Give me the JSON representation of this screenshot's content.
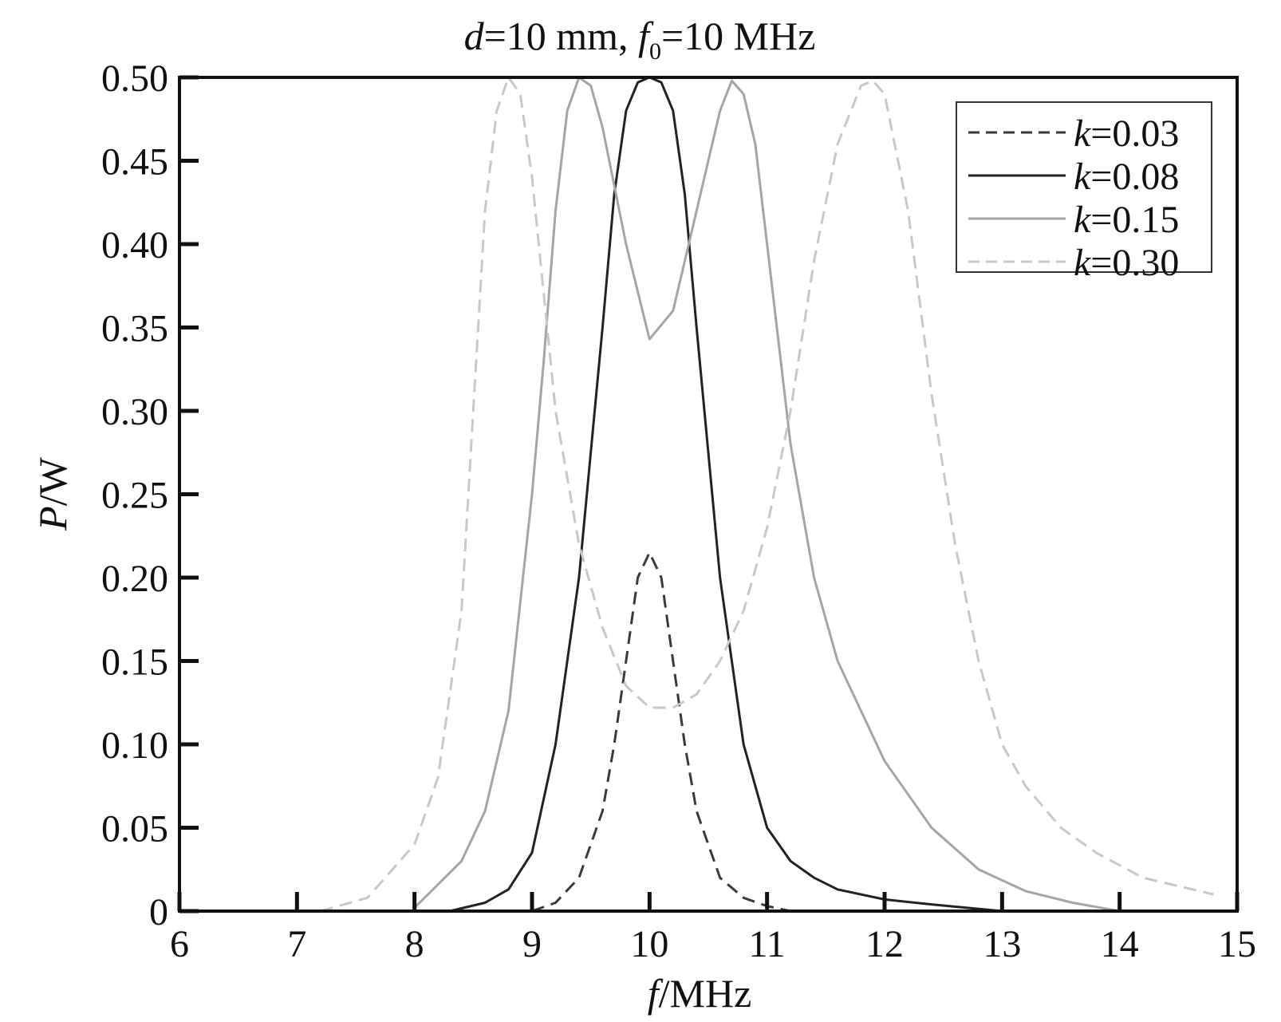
{
  "chart_data": {
    "type": "line",
    "title": {
      "var1": "d",
      "part1": "=10 mm, ",
      "var2": "f",
      "sub2": "0",
      "part2": "=10 MHz"
    },
    "xlabel": {
      "var": "f",
      "unit": "/MHz"
    },
    "ylabel": {
      "var": "P",
      "unit": "/W"
    },
    "xlim": [
      6,
      15
    ],
    "ylim": [
      0,
      0.5
    ],
    "xticks": [
      6,
      7,
      8,
      9,
      10,
      11,
      12,
      13,
      14,
      15
    ],
    "xtick_labels": [
      "6",
      "7",
      "8",
      "9",
      "10",
      "11",
      "12",
      "13",
      "14",
      "15"
    ],
    "yticks": [
      0,
      0.05,
      0.1,
      0.15,
      0.2,
      0.25,
      0.3,
      0.35,
      0.4,
      0.45,
      0.5
    ],
    "ytick_labels": [
      "0",
      "0.05",
      "0.10",
      "0.15",
      "0.20",
      "0.25",
      "0.30",
      "0.35",
      "0.40",
      "0.45",
      "0.50"
    ],
    "grid": false,
    "legend_position": "top-right",
    "series": [
      {
        "name": {
          "var": "k",
          "text": "=0.03"
        },
        "color": "#3a3a3a",
        "style": "dashed",
        "x": [
          9.0,
          9.2,
          9.4,
          9.6,
          9.7,
          9.8,
          9.9,
          10.0,
          10.1,
          10.2,
          10.3,
          10.4,
          10.6,
          10.8,
          11.0,
          11.2
        ],
        "y": [
          0.0,
          0.005,
          0.02,
          0.06,
          0.1,
          0.15,
          0.2,
          0.215,
          0.2,
          0.15,
          0.1,
          0.06,
          0.02,
          0.008,
          0.003,
          0.0
        ]
      },
      {
        "name": {
          "var": "k",
          "text": "=0.08"
        },
        "color": "#222222",
        "style": "solid",
        "x": [
          8.3,
          8.6,
          8.8,
          9.0,
          9.2,
          9.4,
          9.6,
          9.7,
          9.8,
          9.9,
          10.0,
          10.1,
          10.2,
          10.3,
          10.4,
          10.6,
          10.8,
          11.0,
          11.2,
          11.4,
          11.6,
          12.0,
          12.4,
          13.0
        ],
        "y": [
          0.0,
          0.005,
          0.013,
          0.035,
          0.1,
          0.2,
          0.35,
          0.43,
          0.48,
          0.497,
          0.5,
          0.497,
          0.48,
          0.43,
          0.35,
          0.2,
          0.1,
          0.05,
          0.03,
          0.02,
          0.013,
          0.007,
          0.004,
          0.0
        ]
      },
      {
        "name": {
          "var": "k",
          "text": "=0.15"
        },
        "color": "#a5a5a5",
        "style": "solid",
        "x": [
          8.0,
          8.4,
          8.6,
          8.8,
          9.0,
          9.1,
          9.2,
          9.3,
          9.4,
          9.5,
          9.6,
          9.8,
          10.0,
          10.2,
          10.4,
          10.6,
          10.7,
          10.8,
          10.9,
          11.0,
          11.2,
          11.4,
          11.6,
          12.0,
          12.4,
          12.8,
          13.2,
          13.6,
          14.0
        ],
        "y": [
          0.002,
          0.03,
          0.06,
          0.12,
          0.25,
          0.33,
          0.42,
          0.48,
          0.5,
          0.495,
          0.47,
          0.4,
          0.343,
          0.36,
          0.42,
          0.48,
          0.498,
          0.49,
          0.46,
          0.4,
          0.28,
          0.2,
          0.15,
          0.09,
          0.05,
          0.025,
          0.012,
          0.005,
          0.0
        ]
      },
      {
        "name": {
          "var": "k",
          "text": "=0.30"
        },
        "color": "#c8c8c8",
        "style": "dashed",
        "x": [
          7.2,
          7.6,
          8.0,
          8.2,
          8.4,
          8.5,
          8.6,
          8.7,
          8.8,
          8.9,
          9.0,
          9.2,
          9.4,
          9.6,
          9.8,
          10.0,
          10.2,
          10.4,
          10.6,
          10.8,
          11.0,
          11.2,
          11.4,
          11.6,
          11.8,
          11.9,
          12.0,
          12.2,
          12.4,
          12.6,
          12.8,
          13.0,
          13.2,
          13.5,
          13.8,
          14.2,
          14.8
        ],
        "y": [
          0.0,
          0.008,
          0.04,
          0.08,
          0.18,
          0.3,
          0.42,
          0.48,
          0.5,
          0.49,
          0.44,
          0.3,
          0.22,
          0.17,
          0.135,
          0.122,
          0.122,
          0.13,
          0.15,
          0.18,
          0.23,
          0.3,
          0.39,
          0.46,
          0.495,
          0.498,
          0.49,
          0.42,
          0.31,
          0.22,
          0.15,
          0.1,
          0.075,
          0.05,
          0.035,
          0.02,
          0.01
        ]
      }
    ]
  }
}
